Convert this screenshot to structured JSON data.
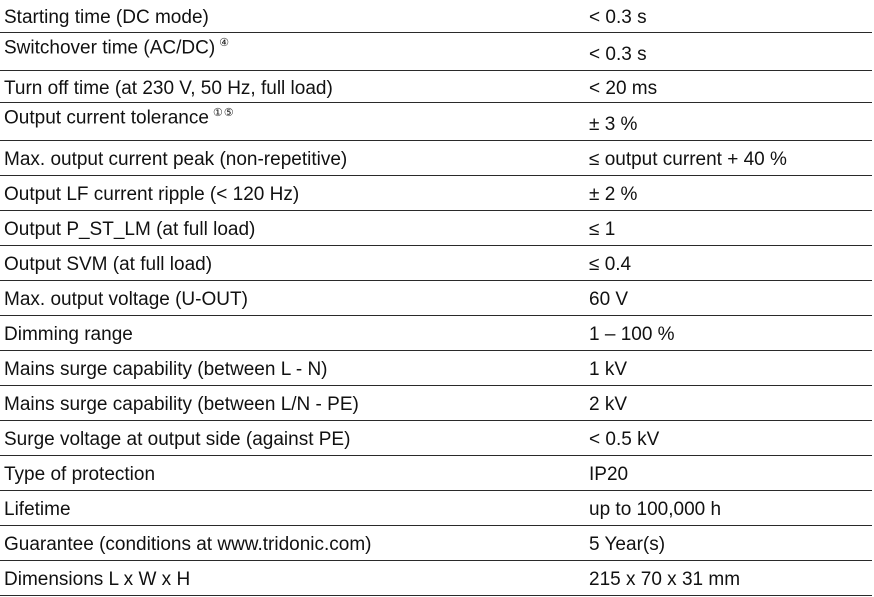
{
  "rows": [
    {
      "label": "Starting time (DC mode)",
      "footnote": "",
      "value": "< 0.3 s"
    },
    {
      "label": "Switchover time (AC/DC)",
      "footnote": "④",
      "value": "< 0.3 s"
    },
    {
      "label": "Turn off time (at 230 V, 50 Hz, full load)",
      "footnote": "",
      "value": "< 20 ms"
    },
    {
      "label": "Output current tolerance",
      "footnote": "①⑤",
      "value": "± 3 %"
    },
    {
      "label": "Max. output current peak (non-repetitive)",
      "footnote": "",
      "value": "≤ output current + 40 %"
    },
    {
      "label": "Output LF current ripple (< 120 Hz)",
      "footnote": "",
      "value": "± 2 %"
    },
    {
      "label": "Output P_ST_LM (at full load)",
      "footnote": "",
      "value": "≤ 1"
    },
    {
      "label": "Output SVM (at full load)",
      "footnote": "",
      "value": "≤ 0.4"
    },
    {
      "label": "Max. output voltage (U-OUT)",
      "footnote": "",
      "value": "60 V"
    },
    {
      "label": "Dimming range",
      "footnote": "",
      "value": "1 – 100 %"
    },
    {
      "label": "Mains surge capability (between L - N)",
      "footnote": "",
      "value": "1 kV"
    },
    {
      "label": "Mains surge capability (between L/N - PE)",
      "footnote": "",
      "value": "2 kV"
    },
    {
      "label": "Surge voltage at output side (against PE)",
      "footnote": "",
      "value": "< 0.5 kV"
    },
    {
      "label": "Type of protection",
      "footnote": "",
      "value": "IP20"
    },
    {
      "label": "Lifetime",
      "footnote": "",
      "value": "up to 100,000 h"
    },
    {
      "label": "Guarantee (conditions at www.tridonic.com)",
      "footnote": "",
      "value": "5 Year(s)"
    },
    {
      "label": "Dimensions L x W x H",
      "footnote": "",
      "value": "215 x 70 x 31 mm"
    }
  ]
}
